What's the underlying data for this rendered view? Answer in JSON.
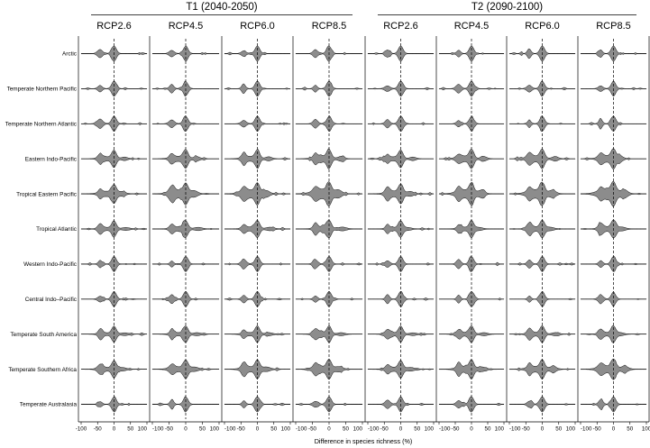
{
  "chart_data": {
    "type": "violin",
    "xlabel": "Difference in species richness (%)",
    "xlim": [
      -100,
      100
    ],
    "xticks": [
      "-100",
      "-50",
      "0",
      "50",
      "100"
    ],
    "zero_reference_line": "dashed",
    "fill_color": "#8c8c8c",
    "outline_color": "#000000",
    "periods": [
      {
        "label": "T1 (2040-2050)",
        "scenarios": [
          "RCP2.6",
          "RCP4.5",
          "RCP6.0",
          "RCP8.5"
        ]
      },
      {
        "label": "T2 (2090-2100)",
        "scenarios": [
          "RCP2.6",
          "RCP4.5",
          "RCP6.0",
          "RCP8.5"
        ]
      }
    ],
    "regions": [
      "Arctic",
      "Temperate Northern Pacific",
      "Temperate Northern Atlantic",
      "Eastern Indo-Pacific",
      "Tropical Eastern Pacific",
      "Tropical Atlantic",
      "Western Indo-Pacific",
      "Central Indo–Pacific",
      "Temperate South America",
      "Temperate Southern Africa",
      "Temperate Australasia"
    ]
  }
}
